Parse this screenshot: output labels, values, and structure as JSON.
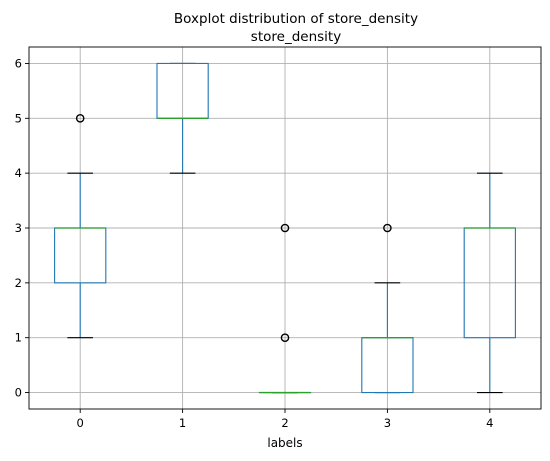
{
  "chart_data": {
    "type": "boxplot",
    "title": "Boxplot distribution of store_density",
    "subtitle": "store_density",
    "xlabel": "labels",
    "ylabel": "",
    "categories": [
      "0",
      "1",
      "2",
      "3",
      "4"
    ],
    "y_ticks": [
      "0",
      "1",
      "2",
      "3",
      "4",
      "5",
      "6"
    ],
    "ylim": [
      -0.3,
      6.3
    ],
    "grid": true,
    "boxes": [
      {
        "category": "0",
        "whisker_low": 1,
        "q1": 2,
        "median": 3,
        "q3": 3,
        "whisker_high": 4,
        "outliers": [
          5
        ]
      },
      {
        "category": "1",
        "whisker_low": 4,
        "q1": 5,
        "median": 5,
        "q3": 6,
        "whisker_high": 6,
        "outliers": []
      },
      {
        "category": "2",
        "whisker_low": 0,
        "q1": 0,
        "median": 0,
        "q3": 0,
        "whisker_high": 0,
        "outliers": [
          1,
          3
        ]
      },
      {
        "category": "3",
        "whisker_low": 0,
        "q1": 0,
        "median": 1,
        "q3": 1,
        "whisker_high": 2,
        "outliers": [
          3
        ]
      },
      {
        "category": "4",
        "whisker_low": 0,
        "q1": 1,
        "median": 3,
        "q3": 3,
        "whisker_high": 4,
        "outliers": []
      }
    ],
    "colors": {
      "box": "#1f77b4",
      "median": "#2ca02c",
      "cap": "#000000",
      "grid": "#b0b0b0"
    }
  }
}
